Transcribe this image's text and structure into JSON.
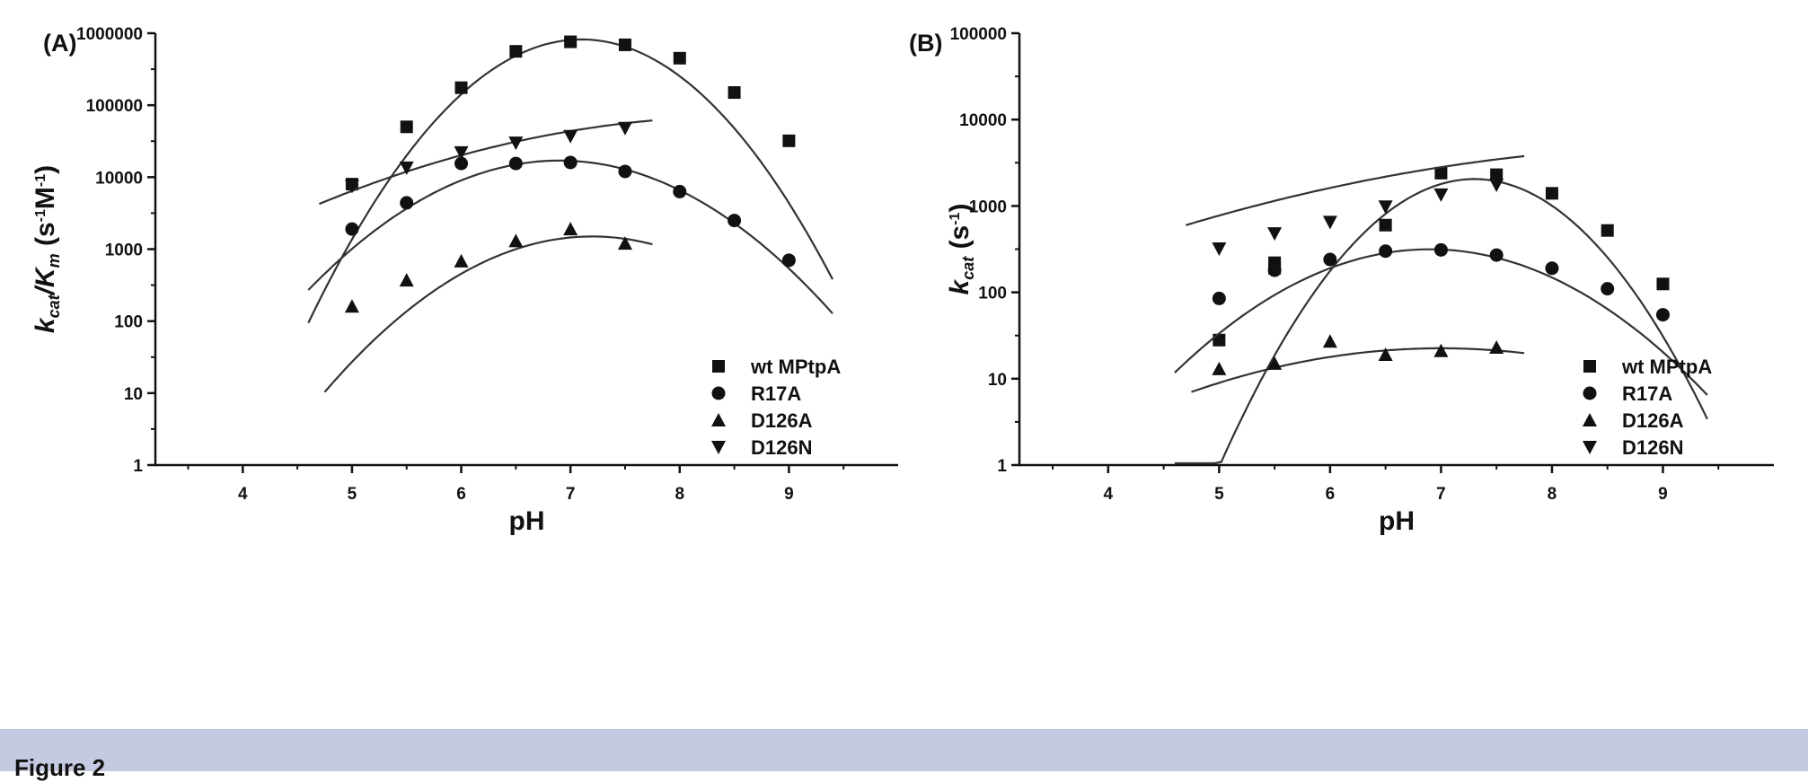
{
  "caption": {
    "title": "Figure 2"
  },
  "chart_data": [
    {
      "panel_label": "(A)",
      "type": "scatter",
      "ylabel": {
        "k": "k",
        "sub1": "cat",
        "slash": "/",
        "K": "K",
        "sub2": "m",
        "unit_open": " (s",
        "exp1": "-1",
        "M": "M",
        "exp2": "-1",
        "unit_close": ")"
      },
      "xlabel": "pH",
      "x_ticks": [
        "4",
        "5",
        "6",
        "7",
        "8",
        "9"
      ],
      "y_ticks": [
        "1",
        "10",
        "100",
        "1000",
        "10000",
        "100000",
        "1000000"
      ],
      "xlim": [
        3.2,
        10.0
      ],
      "ylim": [
        1,
        1000000
      ],
      "yscale": "log",
      "legend_position": "bottom-right",
      "series": [
        {
          "name": "wt MPtpA",
          "marker": "square",
          "x": [
            5,
            5.5,
            6,
            6.5,
            7,
            7.5,
            8,
            8.5,
            9
          ],
          "y": [
            8000,
            50000,
            175000,
            560000,
            760000,
            690000,
            450000,
            150000,
            32000
          ],
          "fit": {
            "x_range": [
              4.6,
              9.4
            ],
            "vertex_x": 7.1,
            "vertex_y": 820000,
            "curvature": 0.63
          }
        },
        {
          "name": "R17A",
          "marker": "circle",
          "x": [
            5,
            5.5,
            6,
            6.5,
            7,
            7.5,
            8,
            8.5,
            9
          ],
          "y": [
            1900,
            4400,
            15500,
            15500,
            16000,
            12000,
            6300,
            2500,
            700
          ],
          "fit": {
            "x_range": [
              4.6,
              9.4
            ],
            "vertex_x": 6.9,
            "vertex_y": 17000,
            "curvature": 0.34
          }
        },
        {
          "name": "D126A",
          "marker": "triangle-up",
          "x": [
            5,
            5.5,
            6,
            6.5,
            7,
            7.5
          ],
          "y": [
            160,
            370,
            680,
            1300,
            1900,
            1200
          ],
          "fit": {
            "x_range": [
              4.75,
              7.75
            ],
            "vertex_x": 7.2,
            "vertex_y": 1500,
            "curvature": 0.36
          }
        },
        {
          "name": "D126N",
          "marker": "triangle-down",
          "x": [
            5,
            5.5,
            6,
            6.5,
            7,
            7.5
          ],
          "y": [
            7500,
            13500,
            22000,
            30000,
            37000,
            48000
          ],
          "fit": {
            "x_range": [
              4.7,
              7.75
            ],
            "vertex_x": 8.6,
            "vertex_y": 70000,
            "curvature": 0.08
          }
        }
      ]
    },
    {
      "panel_label": "(B)",
      "type": "scatter",
      "ylabel": {
        "k": "k",
        "sub1": "cat",
        "unit_open": " (s",
        "exp1": "-1",
        "unit_close": ")"
      },
      "xlabel": "pH",
      "x_ticks": [
        "4",
        "5",
        "6",
        "7",
        "8",
        "9"
      ],
      "y_ticks": [
        "1",
        "10",
        "100",
        "1000",
        "10000",
        "100000"
      ],
      "xlim": [
        3.2,
        10.0
      ],
      "ylim": [
        1,
        100000
      ],
      "yscale": "log",
      "legend_position": "bottom-right",
      "series": [
        {
          "name": "wt MPtpA",
          "marker": "square",
          "x": [
            5,
            5.5,
            5.5,
            6.5,
            7,
            7.5,
            8,
            8.5,
            9
          ],
          "y": [
            28,
            220,
            190,
            600,
            2400,
            2300,
            1400,
            520,
            125
          ],
          "fit": {
            "x_range": [
              4.6,
              9.4
            ],
            "vertex_x": 7.3,
            "vertex_y": 2050,
            "curvature": 0.63
          }
        },
        {
          "name": "R17A",
          "marker": "circle",
          "x": [
            5,
            5.5,
            6,
            6.5,
            7,
            7.5,
            8,
            8.5,
            9
          ],
          "y": [
            85,
            180,
            240,
            300,
            310,
            270,
            190,
            110,
            55
          ],
          "fit": {
            "x_range": [
              4.6,
              9.4
            ],
            "vertex_x": 6.9,
            "vertex_y": 315,
            "curvature": 0.27
          }
        },
        {
          "name": "D126A",
          "marker": "triangle-up",
          "x": [
            5,
            5.5,
            6,
            6.5,
            7,
            7.5
          ],
          "y": [
            13,
            15,
            27,
            19,
            21,
            23
          ],
          "fit": {
            "x_range": [
              4.75,
              7.75
            ],
            "vertex_x": 7.0,
            "vertex_y": 22.5,
            "curvature": 0.1
          }
        },
        {
          "name": "D126N",
          "marker": "triangle-down",
          "x": [
            5,
            5.5,
            6,
            6.5,
            7,
            7.5
          ],
          "y": [
            320,
            480,
            650,
            980,
            1350,
            1750
          ],
          "fit": {
            "x_range": [
              4.7,
              7.75
            ],
            "vertex_x": 9.5,
            "vertex_y": 5000,
            "curvature": 0.04
          }
        }
      ]
    }
  ]
}
